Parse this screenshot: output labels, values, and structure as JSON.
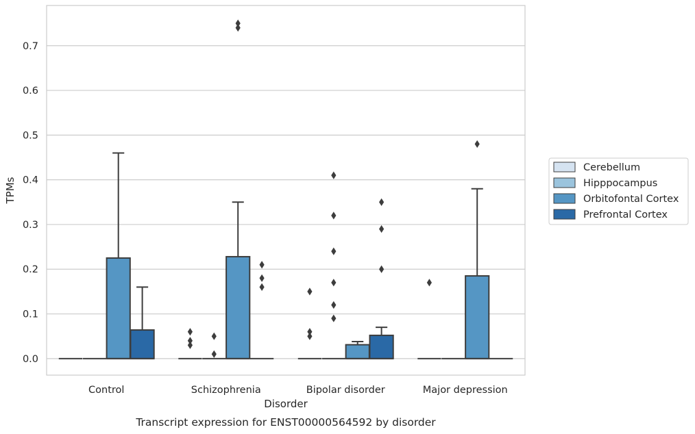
{
  "chart_data": {
    "type": "box",
    "title": "Transcript expression for ENST00000564592 by disorder",
    "xlabel": "Disorder",
    "ylabel": "TPMs",
    "categories": [
      "Control",
      "Schizophrenia",
      "Bipolar disorder",
      "Major depression"
    ],
    "ylim": [
      -0.037,
      0.79
    ],
    "yticks": [
      0.0,
      0.1,
      0.2,
      0.3,
      0.4,
      0.5,
      0.6,
      0.7
    ],
    "ytick_labels": [
      "0.0",
      "0.1",
      "0.2",
      "0.3",
      "0.4",
      "0.5",
      "0.6",
      "0.7"
    ],
    "grid": "horizontal",
    "legend_position": "right",
    "series": [
      {
        "name": "Cerebellum",
        "color": "#d5e3f1",
        "boxes": [
          {
            "category": "Control",
            "q1": 0,
            "median": 0,
            "q3": 0,
            "whisker_low": 0,
            "whisker_high": 0,
            "outliers": []
          },
          {
            "category": "Schizophrenia",
            "q1": 0,
            "median": 0,
            "q3": 0,
            "whisker_low": 0,
            "whisker_high": 0,
            "outliers": [
              0.03,
              0.04,
              0.06
            ]
          },
          {
            "category": "Bipolar disorder",
            "q1": 0,
            "median": 0,
            "q3": 0,
            "whisker_low": 0,
            "whisker_high": 0,
            "outliers": [
              0.05,
              0.06,
              0.15
            ]
          },
          {
            "category": "Major depression",
            "q1": 0,
            "median": 0,
            "q3": 0,
            "whisker_low": 0,
            "whisker_high": 0,
            "outliers": [
              0.17
            ]
          }
        ]
      },
      {
        "name": "Hipppocampus",
        "color": "#9bc4dd",
        "boxes": [
          {
            "category": "Control",
            "q1": 0,
            "median": 0,
            "q3": 0,
            "whisker_low": 0,
            "whisker_high": 0,
            "outliers": []
          },
          {
            "category": "Schizophrenia",
            "q1": 0,
            "median": 0,
            "q3": 0,
            "whisker_low": 0,
            "whisker_high": 0,
            "outliers": [
              0.01,
              0.05
            ]
          },
          {
            "category": "Bipolar disorder",
            "q1": 0,
            "median": 0,
            "q3": 0,
            "whisker_low": 0,
            "whisker_high": 0,
            "outliers": [
              0.09,
              0.12,
              0.17,
              0.24,
              0.32,
              0.41
            ]
          },
          {
            "category": "Major depression",
            "q1": 0,
            "median": 0,
            "q3": 0,
            "whisker_low": 0,
            "whisker_high": 0,
            "outliers": []
          }
        ]
      },
      {
        "name": "Orbitofontal Cortex",
        "color": "#5596c4",
        "boxes": [
          {
            "category": "Control",
            "q1": 0,
            "median": 0,
            "q3": 0.225,
            "whisker_low": 0,
            "whisker_high": 0.46,
            "outliers": []
          },
          {
            "category": "Schizophrenia",
            "q1": 0,
            "median": 0,
            "q3": 0.228,
            "whisker_low": 0,
            "whisker_high": 0.35,
            "outliers": [
              0.74,
              0.75
            ]
          },
          {
            "category": "Bipolar disorder",
            "q1": 0,
            "median": 0,
            "q3": 0.031,
            "whisker_low": 0,
            "whisker_high": 0.038,
            "outliers": []
          },
          {
            "category": "Major depression",
            "q1": 0,
            "median": 0,
            "q3": 0.185,
            "whisker_low": 0,
            "whisker_high": 0.38,
            "outliers": [
              0.48
            ]
          }
        ]
      },
      {
        "name": "Prefrontal Cortex",
        "color": "#2a69a6",
        "boxes": [
          {
            "category": "Control",
            "q1": 0,
            "median": 0,
            "q3": 0.064,
            "whisker_low": 0,
            "whisker_high": 0.16,
            "outliers": []
          },
          {
            "category": "Schizophrenia",
            "q1": 0,
            "median": 0,
            "q3": 0,
            "whisker_low": 0,
            "whisker_high": 0,
            "outliers": [
              0.16,
              0.18,
              0.21
            ]
          },
          {
            "category": "Bipolar disorder",
            "q1": 0,
            "median": 0,
            "q3": 0.052,
            "whisker_low": 0,
            "whisker_high": 0.07,
            "outliers": [
              0.2,
              0.29,
              0.35
            ]
          },
          {
            "category": "Major depression",
            "q1": 0,
            "median": 0,
            "q3": 0,
            "whisker_low": 0,
            "whisker_high": 0,
            "outliers": []
          }
        ]
      }
    ]
  }
}
